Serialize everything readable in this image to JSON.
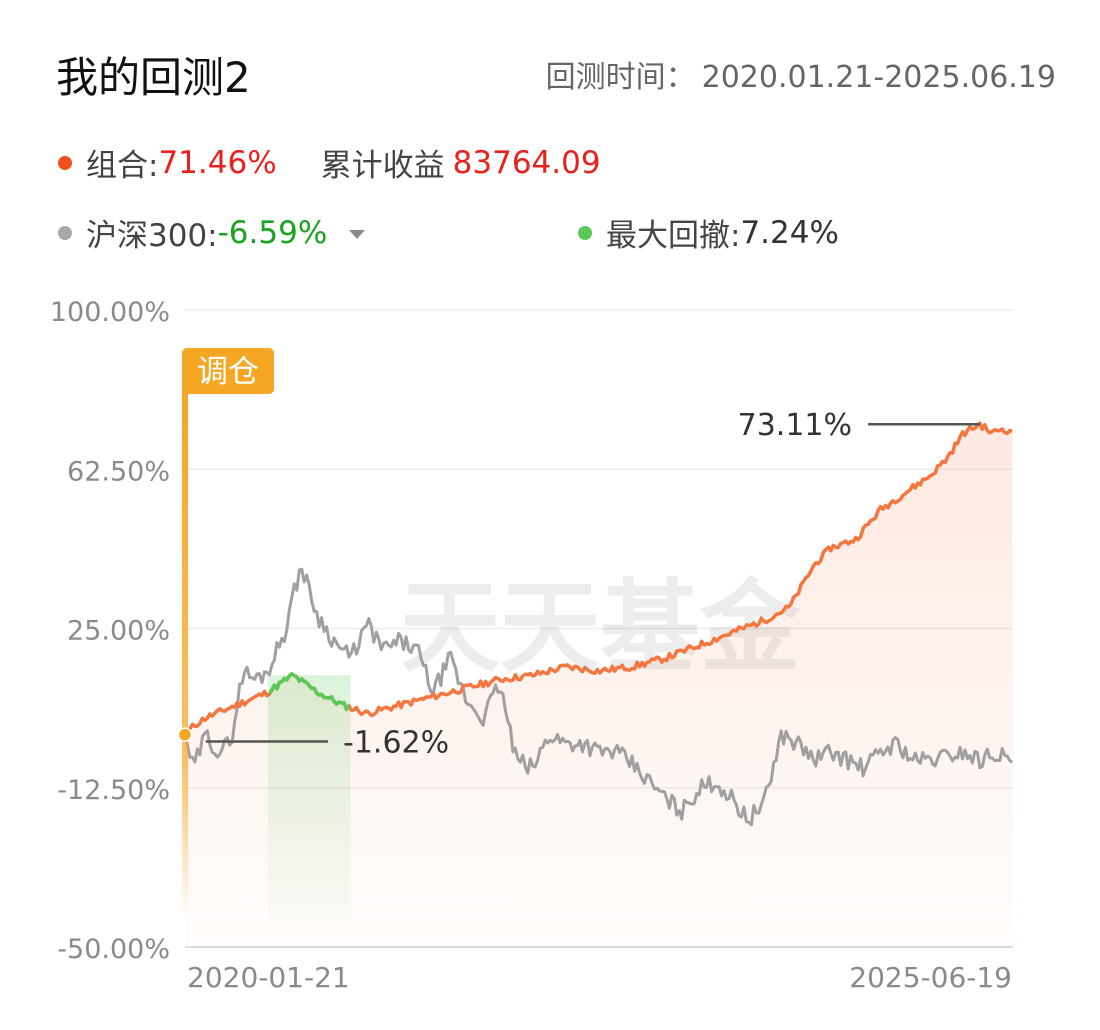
{
  "header": {
    "title": "我的回测2",
    "period_label": "回测时间：",
    "period_value": "2020.01.21-2025.06.19"
  },
  "legend": {
    "portfolio_label": "组合:",
    "portfolio_value": "71.46%",
    "cum_label": "累计收益",
    "cum_value": "83764.09",
    "bench_label": "沪深300:",
    "bench_value": "-6.59%",
    "dd_label": "最大回撤:",
    "dd_value": "7.24%"
  },
  "colors": {
    "portfolio": "#f5763f",
    "benchmark": "#a0a0a0",
    "drawdown": "#5cc85a",
    "rebalance": "#f5a623",
    "up": "#e8221b",
    "down": "#1aa31e"
  },
  "chart_data": {
    "type": "line",
    "x_start": "2020-01-21",
    "x_end": "2025-06-19",
    "x_labels": [
      "2020-01-21",
      "2025-06-19"
    ],
    "y_ticks": [
      "100.00%",
      "62.50%",
      "25.00%",
      "-12.50%",
      "-50.00%"
    ],
    "ylim": [
      -50,
      100
    ],
    "watermark": "天天基金",
    "rebalance_label": "调仓",
    "annotations": {
      "max_label": "73.11%",
      "min_label": "-1.62%"
    },
    "series": [
      {
        "name": "组合",
        "x": [
          0,
          0.01,
          0.025,
          0.05,
          0.075,
          0.1,
          0.13,
          0.16,
          0.19,
          0.22,
          0.26,
          0.3,
          0.34,
          0.38,
          0.42,
          0.46,
          0.5,
          0.54,
          0.58,
          0.62,
          0.66,
          0.7,
          0.73,
          0.76,
          0.78,
          0.81,
          0.84,
          0.87,
          0.9,
          0.92,
          0.94,
          0.96,
          0.975,
          0.985,
          1
        ],
        "y": [
          0,
          2,
          4,
          6,
          8,
          10,
          14,
          10,
          7,
          5,
          7,
          9,
          11,
          13,
          14,
          16,
          15,
          16,
          18,
          21,
          24,
          27,
          30,
          40,
          44,
          46,
          53,
          57,
          61,
          65,
          71,
          73.11,
          71,
          72,
          71.46
        ]
      },
      {
        "name": "沪深300",
        "x": [
          0,
          0.01,
          0.025,
          0.04,
          0.055,
          0.07,
          0.085,
          0.1,
          0.12,
          0.14,
          0.16,
          0.18,
          0.2,
          0.22,
          0.24,
          0.26,
          0.28,
          0.3,
          0.32,
          0.34,
          0.36,
          0.38,
          0.4,
          0.42,
          0.44,
          0.46,
          0.48,
          0.5,
          0.52,
          0.54,
          0.56,
          0.58,
          0.6,
          0.62,
          0.64,
          0.66,
          0.68,
          0.7,
          0.72,
          0.74,
          0.76,
          0.78,
          0.8,
          0.82,
          0.84,
          0.86,
          0.88,
          0.9,
          0.92,
          0.94,
          0.96,
          0.98,
          1
        ],
        "y": [
          0,
          -8,
          0,
          -4,
          -2,
          15,
          13,
          15,
          24,
          40,
          28,
          22,
          18,
          26,
          20,
          22,
          20,
          10,
          18,
          8,
          4,
          12,
          -6,
          -8,
          0,
          -2,
          -2,
          -4,
          -4,
          -7,
          -11,
          -15,
          -18,
          -13,
          -11,
          -15,
          -20,
          -16,
          0,
          -2,
          -6,
          -4,
          -6,
          -8,
          -4,
          -2,
          -6,
          -6,
          -5,
          -4,
          -6,
          -4,
          -6.59
        ]
      }
    ]
  }
}
